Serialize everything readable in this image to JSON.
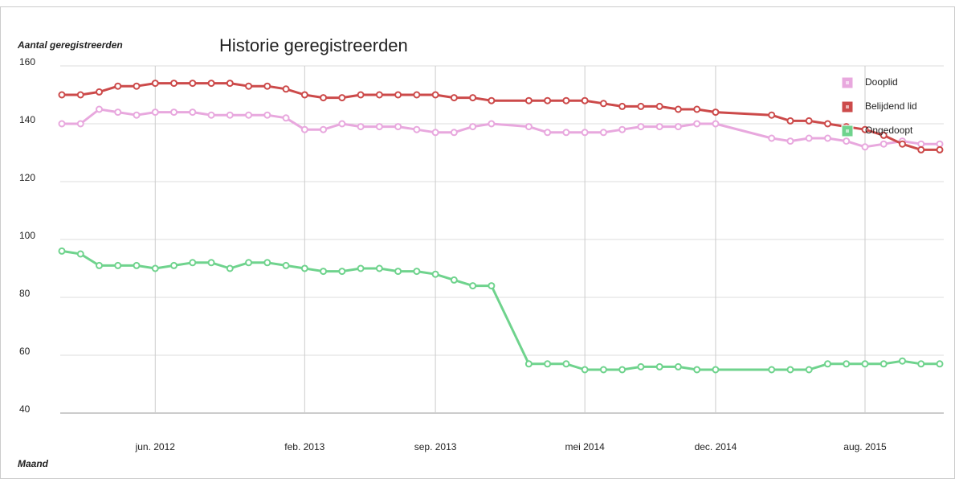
{
  "chart_data": {
    "type": "line",
    "title": "Historie geregistreerden",
    "y_label": "Aantal geregistreerden",
    "x_label": "Maand",
    "x": [
      "2012-01",
      "2012-02",
      "2012-03",
      "2012-04",
      "2012-05",
      "2012-06",
      "2012-07",
      "2012-08",
      "2012-09",
      "2012-10",
      "2012-11",
      "2012-12",
      "2013-01",
      "2013-02",
      "2013-03",
      "2013-04",
      "2013-05",
      "2013-06",
      "2013-07",
      "2013-08",
      "2013-09",
      "2013-10",
      "2013-11",
      "2013-12",
      "2014-02",
      "2014-03",
      "2014-04",
      "2014-05",
      "2014-06",
      "2014-07",
      "2014-08",
      "2014-09",
      "2014-10",
      "2014-11",
      "2014-12",
      "2015-03",
      "2015-04",
      "2015-05",
      "2015-06",
      "2015-07",
      "2015-08",
      "2015-09",
      "2015-10",
      "2015-11",
      "2015-12"
    ],
    "xlim": [
      "2012-01",
      "2015-12"
    ],
    "xticks": [
      {
        "value": "2012-06",
        "label": "jun. 2012"
      },
      {
        "value": "2013-02",
        "label": "feb. 2013"
      },
      {
        "value": "2013-09",
        "label": "sep. 2013"
      },
      {
        "value": "2014-05",
        "label": "mei 2014"
      },
      {
        "value": "2014-12",
        "label": "dec. 2014"
      },
      {
        "value": "2015-08",
        "label": "aug. 2015"
      }
    ],
    "ylim": [
      40,
      160
    ],
    "yticks": [
      40,
      60,
      80,
      100,
      120,
      140,
      160
    ],
    "grid": true,
    "legend": "top-right",
    "series": [
      {
        "name": "Dooplid",
        "color": "#e8a8de",
        "values": [
          140,
          140,
          145,
          144,
          143,
          144,
          144,
          144,
          143,
          143,
          143,
          143,
          142,
          138,
          138,
          140,
          139,
          139,
          139,
          138,
          137,
          137,
          139,
          140,
          139,
          137,
          137,
          137,
          137,
          138,
          139,
          139,
          139,
          140,
          140,
          135,
          134,
          135,
          135,
          134,
          132,
          133,
          134,
          133,
          133
        ]
      },
      {
        "name": "Belijdend lid",
        "color": "#cc4a4a",
        "values": [
          150,
          150,
          151,
          153,
          153,
          154,
          154,
          154,
          154,
          154,
          153,
          153,
          152,
          150,
          149,
          149,
          150,
          150,
          150,
          150,
          150,
          149,
          149,
          148,
          148,
          148,
          148,
          148,
          147,
          146,
          146,
          146,
          145,
          145,
          144,
          143,
          141,
          141,
          140,
          139,
          138,
          136,
          133,
          131,
          131
        ]
      },
      {
        "name": "Ongedoopt",
        "color": "#6fd38d",
        "values": [
          96,
          95,
          91,
          91,
          91,
          90,
          91,
          92,
          92,
          90,
          92,
          92,
          91,
          90,
          89,
          89,
          90,
          90,
          89,
          89,
          88,
          86,
          84,
          84,
          57,
          57,
          57,
          55,
          55,
          55,
          56,
          56,
          56,
          55,
          55,
          55,
          55,
          55,
          57,
          57,
          57,
          57,
          58,
          57,
          57
        ]
      }
    ]
  }
}
